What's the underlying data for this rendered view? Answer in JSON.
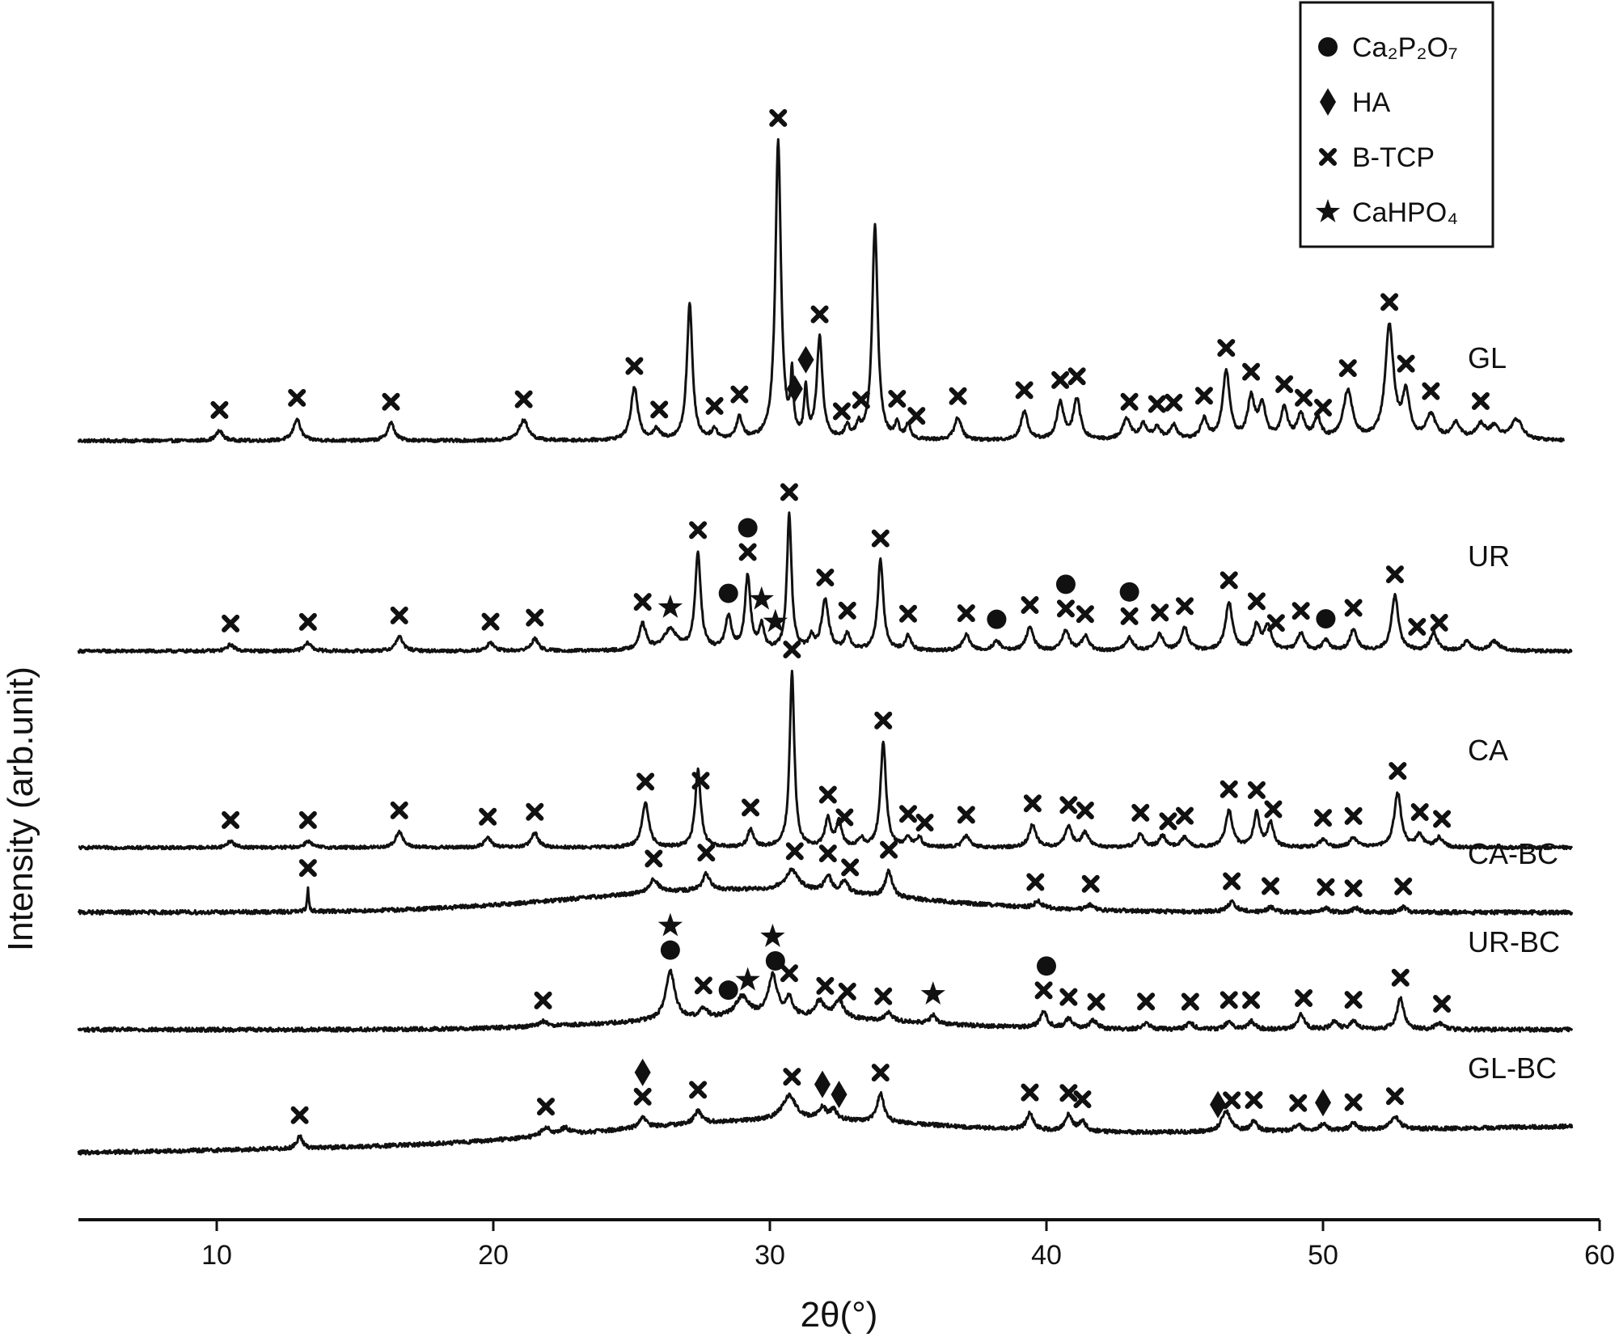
{
  "chart_data": {
    "type": "line",
    "subtype": "xrd-stacked-patterns",
    "xlabel": "2θ(°)",
    "ylabel": "Intensity (arb.unit)",
    "xlim": [
      5,
      60
    ],
    "x_ticks": [
      10,
      20,
      30,
      40,
      50,
      60
    ],
    "y_ticks": "none",
    "grid": false,
    "legend_position": "top-right",
    "legend": [
      {
        "marker": "circle",
        "name": "Ca₂P₂O₇"
      },
      {
        "marker": "diamond",
        "name": "HA"
      },
      {
        "marker": "cross",
        "name": "B-TCP"
      },
      {
        "marker": "star",
        "name": "CaHPO₄"
      }
    ],
    "series": [
      {
        "name": "GL",
        "x_range": [
          5,
          58.7
        ],
        "baseline": 0,
        "slope": 0,
        "noise": 2,
        "hump": {
          "center": 0,
          "width": 1,
          "height": 0
        },
        "peaks": [
          [
            10.1,
            12,
            0.15
          ],
          [
            12.9,
            27,
            0.15
          ],
          [
            16.3,
            22,
            0.15
          ],
          [
            21.1,
            25,
            0.2
          ],
          [
            25.1,
            65,
            0.15
          ],
          [
            25.9,
            12,
            0.15
          ],
          [
            27.1,
            168,
            0.12
          ],
          [
            28.0,
            12,
            0.12
          ],
          [
            28.9,
            27,
            0.13
          ],
          [
            30.3,
            370,
            0.12
          ],
          [
            30.8,
            72,
            0.06
          ],
          [
            31.3,
            60,
            0.07
          ],
          [
            31.8,
            125,
            0.12
          ],
          [
            32.8,
            15,
            0.1
          ],
          [
            33.2,
            15,
            0.1
          ],
          [
            33.8,
            265,
            0.12
          ],
          [
            34.6,
            18,
            0.1
          ],
          [
            35.0,
            18,
            0.1
          ],
          [
            36.8,
            28,
            0.15
          ],
          [
            39.2,
            35,
            0.15
          ],
          [
            40.5,
            45,
            0.15
          ],
          [
            41.1,
            50,
            0.15
          ],
          [
            42.9,
            25,
            0.18
          ],
          [
            43.5,
            18,
            0.15
          ],
          [
            44.0,
            15,
            0.15
          ],
          [
            44.6,
            18,
            0.15
          ],
          [
            45.7,
            25,
            0.15
          ],
          [
            46.5,
            85,
            0.15
          ],
          [
            47.4,
            50,
            0.15
          ],
          [
            47.8,
            42,
            0.15
          ],
          [
            48.6,
            38,
            0.15
          ],
          [
            49.2,
            30,
            0.15
          ],
          [
            49.8,
            25,
            0.15
          ],
          [
            50.9,
            60,
            0.2
          ],
          [
            52.4,
            140,
            0.18
          ],
          [
            53.0,
            55,
            0.15
          ],
          [
            53.9,
            30,
            0.2
          ],
          [
            54.8,
            20,
            0.2
          ],
          [
            55.7,
            18,
            0.2
          ],
          [
            56.2,
            15,
            0.2
          ],
          [
            57.0,
            25,
            0.25
          ]
        ],
        "markers": [
          {
            "type": "cross",
            "x": [
              10.1,
              12.9,
              16.3,
              21.1,
              25.1,
              26.0,
              28.0,
              28.9,
              30.3,
              31.8,
              32.6,
              33.3,
              34.6,
              35.3,
              36.8,
              39.2,
              40.5,
              41.1,
              43.0,
              44.0,
              44.6,
              45.7,
              46.5,
              47.4,
              48.6,
              49.3,
              50.0,
              50.9,
              52.4,
              53.0,
              53.9,
              55.7
            ]
          },
          {
            "type": "diamond",
            "x": [
              30.9,
              31.3
            ]
          }
        ]
      },
      {
        "name": "UR",
        "x_range": [
          5,
          59
        ],
        "baseline": 0,
        "slope": 0,
        "noise": 2,
        "hump": {
          "center": 0,
          "width": 1,
          "height": 0
        },
        "peaks": [
          [
            10.5,
            8,
            0.15
          ],
          [
            13.3,
            10,
            0.15
          ],
          [
            16.6,
            18,
            0.15
          ],
          [
            19.9,
            10,
            0.15
          ],
          [
            21.5,
            15,
            0.15
          ],
          [
            25.4,
            32,
            0.15
          ],
          [
            26.4,
            25,
            0.3
          ],
          [
            27.4,
            120,
            0.12
          ],
          [
            28.5,
            40,
            0.13
          ],
          [
            29.2,
            92,
            0.12
          ],
          [
            29.7,
            30,
            0.1
          ],
          [
            30.7,
            168,
            0.1
          ],
          [
            31.5,
            15,
            0.1
          ],
          [
            32.0,
            62,
            0.15
          ],
          [
            32.8,
            20,
            0.12
          ],
          [
            34.0,
            112,
            0.12
          ],
          [
            35.0,
            18,
            0.12
          ],
          [
            37.1,
            20,
            0.15
          ],
          [
            38.2,
            12,
            0.15
          ],
          [
            39.4,
            30,
            0.15
          ],
          [
            40.7,
            25,
            0.15
          ],
          [
            41.4,
            18,
            0.15
          ],
          [
            43.0,
            16,
            0.15
          ],
          [
            44.1,
            20,
            0.15
          ],
          [
            45.0,
            28,
            0.15
          ],
          [
            46.6,
            60,
            0.15
          ],
          [
            47.6,
            30,
            0.15
          ],
          [
            48.0,
            30,
            0.15
          ],
          [
            49.2,
            22,
            0.15
          ],
          [
            50.1,
            12,
            0.15
          ],
          [
            51.1,
            26,
            0.15
          ],
          [
            52.6,
            68,
            0.15
          ],
          [
            54.0,
            22,
            0.15
          ],
          [
            55.2,
            12,
            0.15
          ],
          [
            56.2,
            12,
            0.2
          ]
        ],
        "markers": [
          {
            "type": "cross",
            "x": [
              10.5,
              13.3,
              16.6,
              19.9,
              21.5,
              25.4,
              27.4,
              29.2,
              30.7,
              32.0,
              32.8,
              34.0,
              35.0,
              37.1,
              39.4,
              40.7,
              41.4,
              43.0,
              44.1,
              45.0,
              46.6,
              47.6,
              48.3,
              49.2,
              51.1,
              52.6,
              53.4,
              54.2
            ]
          },
          {
            "type": "circle",
            "x": [
              28.5,
              29.2,
              38.2,
              40.7,
              43.0,
              50.1
            ]
          },
          {
            "type": "star",
            "x": [
              26.4,
              29.7,
              30.2
            ]
          }
        ]
      },
      {
        "name": "CA",
        "x_range": [
          5,
          59
        ],
        "baseline": 0,
        "slope": 0,
        "noise": 2,
        "hump": {
          "center": 0,
          "width": 1,
          "height": 0
        },
        "peaks": [
          [
            10.5,
            8,
            0.15
          ],
          [
            13.3,
            8,
            0.15
          ],
          [
            16.6,
            20,
            0.15
          ],
          [
            19.8,
            12,
            0.15
          ],
          [
            21.5,
            18,
            0.15
          ],
          [
            25.5,
            55,
            0.15
          ],
          [
            27.4,
            95,
            0.12
          ],
          [
            29.3,
            22,
            0.12
          ],
          [
            30.8,
            218,
            0.1
          ],
          [
            32.1,
            35,
            0.12
          ],
          [
            32.5,
            30,
            0.12
          ],
          [
            33.3,
            10,
            0.12
          ],
          [
            34.1,
            130,
            0.12
          ],
          [
            35.0,
            12,
            0.12
          ],
          [
            35.4,
            12,
            0.12
          ],
          [
            37.1,
            14,
            0.15
          ],
          [
            39.5,
            28,
            0.15
          ],
          [
            40.8,
            25,
            0.15
          ],
          [
            41.4,
            18,
            0.15
          ],
          [
            43.4,
            16,
            0.15
          ],
          [
            44.2,
            14,
            0.15
          ],
          [
            45.0,
            12,
            0.15
          ],
          [
            46.6,
            45,
            0.15
          ],
          [
            47.6,
            42,
            0.13
          ],
          [
            48.1,
            30,
            0.13
          ],
          [
            50.0,
            10,
            0.15
          ],
          [
            51.1,
            12,
            0.15
          ],
          [
            52.7,
            68,
            0.15
          ],
          [
            53.5,
            15,
            0.15
          ],
          [
            54.2,
            12,
            0.15
          ]
        ],
        "markers": [
          {
            "type": "cross",
            "x": [
              10.5,
              13.3,
              16.6,
              19.8,
              21.5,
              25.5,
              27.5,
              29.3,
              30.8,
              32.1,
              32.7,
              34.1,
              35.0,
              35.6,
              37.1,
              39.5,
              40.8,
              41.4,
              43.4,
              44.4,
              45.0,
              46.6,
              47.6,
              48.2,
              50.0,
              51.1,
              52.7,
              53.5,
              54.3
            ]
          }
        ]
      },
      {
        "name": "CA-BC",
        "x_range": [
          5,
          59
        ],
        "baseline": 0,
        "slope": 0,
        "noise": 2.5,
        "hump": {
          "center": 29,
          "width": 6,
          "height": 28
        },
        "peaks": [
          [
            13.3,
            28,
            0.04
          ],
          [
            25.8,
            16,
            0.2
          ],
          [
            27.7,
            20,
            0.15
          ],
          [
            30.8,
            25,
            0.3
          ],
          [
            32.1,
            20,
            0.15
          ],
          [
            32.7,
            15,
            0.15
          ],
          [
            34.3,
            32,
            0.15
          ],
          [
            39.7,
            8,
            0.15
          ],
          [
            41.6,
            6,
            0.15
          ],
          [
            46.7,
            12,
            0.2
          ],
          [
            48.1,
            6,
            0.15
          ],
          [
            50.1,
            5,
            0.15
          ],
          [
            51.2,
            5,
            0.15
          ],
          [
            52.9,
            6,
            0.15
          ]
        ],
        "markers": [
          {
            "type": "cross",
            "x": [
              13.3,
              25.8,
              27.7,
              30.9,
              32.1,
              32.9,
              34.3,
              39.6,
              41.6,
              46.7,
              48.1,
              50.1,
              51.1,
              52.9
            ]
          }
        ]
      },
      {
        "name": "UR-BC",
        "x_range": [
          5,
          59
        ],
        "baseline": 0,
        "slope": 0,
        "noise": 2.5,
        "hump": {
          "center": 30,
          "width": 5,
          "height": 15
        },
        "peaks": [
          [
            21.8,
            6,
            0.2
          ],
          [
            26.4,
            60,
            0.2
          ],
          [
            27.6,
            12,
            0.15
          ],
          [
            29.0,
            25,
            0.3
          ],
          [
            30.1,
            50,
            0.2
          ],
          [
            30.7,
            22,
            0.15
          ],
          [
            31.8,
            20,
            0.2
          ],
          [
            32.5,
            22,
            0.2
          ],
          [
            34.3,
            10,
            0.15
          ],
          [
            35.9,
            10,
            0.12
          ],
          [
            39.9,
            20,
            0.15
          ],
          [
            40.8,
            12,
            0.15
          ],
          [
            41.7,
            10,
            0.15
          ],
          [
            43.6,
            8,
            0.15
          ],
          [
            45.2,
            8,
            0.15
          ],
          [
            46.6,
            10,
            0.15
          ],
          [
            47.4,
            10,
            0.15
          ],
          [
            49.2,
            18,
            0.15
          ],
          [
            50.4,
            10,
            0.15
          ],
          [
            51.1,
            10,
            0.15
          ],
          [
            52.8,
            38,
            0.15
          ],
          [
            54.2,
            8,
            0.15
          ]
        ],
        "markers": [
          {
            "type": "cross",
            "x": [
              21.8,
              27.6,
              30.7,
              32.0,
              32.8,
              34.1,
              39.9,
              40.8,
              41.8,
              43.6,
              45.2,
              46.6,
              47.4,
              49.3,
              51.1,
              52.8,
              54.3
            ]
          },
          {
            "type": "circle",
            "x": [
              26.4,
              28.5,
              30.2,
              40.0
            ]
          },
          {
            "type": "star",
            "x": [
              26.4,
              29.2,
              30.1,
              35.9
            ]
          }
        ]
      },
      {
        "name": "GL-BC",
        "x_range": [
          5,
          59
        ],
        "baseline": 0,
        "slope": 0.6,
        "noise": 2.5,
        "hump": {
          "center": 30,
          "width": 6,
          "height": 25
        },
        "peaks": [
          [
            13.0,
            15,
            0.12
          ],
          [
            21.9,
            10,
            0.2
          ],
          [
            22.6,
            8,
            0.2
          ],
          [
            25.4,
            12,
            0.15
          ],
          [
            27.4,
            15,
            0.15
          ],
          [
            30.7,
            30,
            0.3
          ],
          [
            31.9,
            15,
            0.15
          ],
          [
            32.3,
            12,
            0.15
          ],
          [
            34.0,
            35,
            0.15
          ],
          [
            39.4,
            20,
            0.15
          ],
          [
            40.8,
            20,
            0.15
          ],
          [
            41.3,
            12,
            0.15
          ],
          [
            46.5,
            25,
            0.2
          ],
          [
            47.5,
            12,
            0.15
          ],
          [
            49.1,
            8,
            0.15
          ],
          [
            50.0,
            8,
            0.15
          ],
          [
            51.1,
            8,
            0.15
          ],
          [
            52.6,
            15,
            0.2
          ]
        ],
        "markers": [
          {
            "type": "cross",
            "x": [
              13.0,
              21.9,
              25.4,
              27.4,
              30.8,
              34.0,
              39.4,
              40.8,
              41.3,
              46.7,
              47.5,
              49.1,
              51.1,
              52.6
            ]
          },
          {
            "type": "diamond",
            "x": [
              25.4,
              31.9,
              32.5,
              46.2,
              50.0
            ]
          }
        ]
      }
    ]
  }
}
